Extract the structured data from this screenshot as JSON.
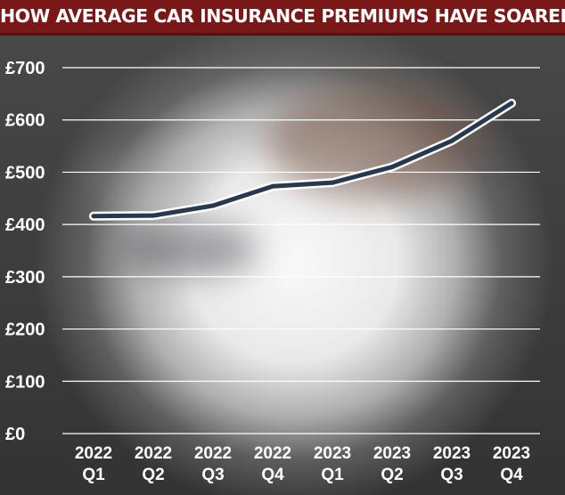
{
  "title": "HOW AVERAGE CAR INSURANCE PREMIUMS HAVE SOARED",
  "chart_data": {
    "type": "line",
    "title": "HOW AVERAGE CAR INSURANCE PREMIUMS HAVE SOARED",
    "xlabel": "",
    "ylabel": "",
    "categories": [
      [
        "2022",
        "Q1"
      ],
      [
        "2022",
        "Q2"
      ],
      [
        "2022",
        "Q3"
      ],
      [
        "2022",
        "Q4"
      ],
      [
        "2023",
        "Q1"
      ],
      [
        "2023",
        "Q2"
      ],
      [
        "2023",
        "Q3"
      ],
      [
        "2023",
        "Q4"
      ]
    ],
    "values": [
      416,
      417,
      436,
      473,
      480,
      510,
      560,
      632
    ],
    "ylim": [
      0,
      700
    ],
    "yticks": [
      0,
      100,
      200,
      300,
      400,
      500,
      600,
      700
    ],
    "ytick_labels": [
      "£0",
      "£100",
      "£200",
      "£300",
      "£400",
      "£500",
      "£600",
      "£700"
    ],
    "grid": true,
    "legend": "none",
    "colors": {
      "line": "#27394f",
      "outline": "#ffffff",
      "grid": "#ffffff",
      "title_bar": "#7a1818"
    }
  }
}
